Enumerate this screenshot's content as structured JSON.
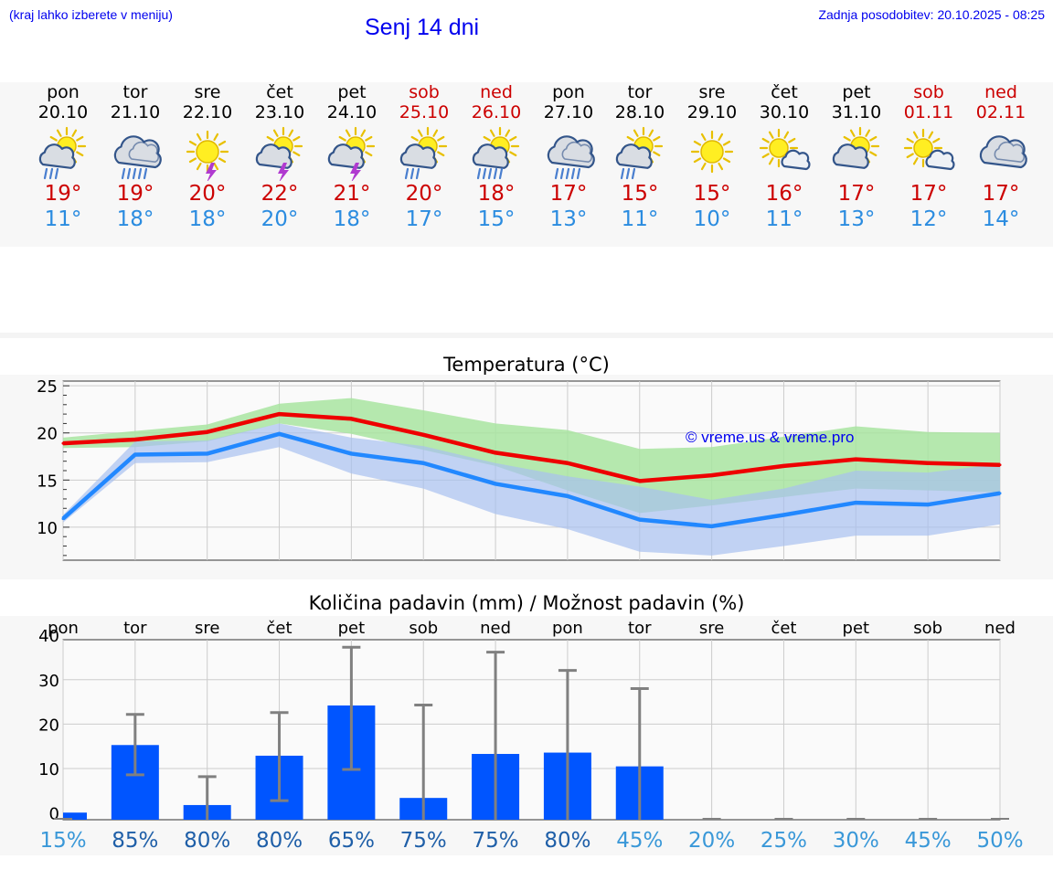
{
  "header": {
    "note": "(kraj lahko izberete v meniju)",
    "title": "Senj 14 dni",
    "updated": "Zadnja posodobitev: 20.10.2025 - 08:25"
  },
  "days": [
    {
      "name": "pon",
      "date": "20.10",
      "weekend": false,
      "icon": "sun-cloud-rain-icon",
      "max": "19°",
      "min": "11°"
    },
    {
      "name": "tor",
      "date": "21.10",
      "weekend": false,
      "icon": "cloud-heavy-rain-icon",
      "max": "19°",
      "min": "18°"
    },
    {
      "name": "sre",
      "date": "22.10",
      "weekend": false,
      "icon": "sun-thunderstorm-icon",
      "max": "20°",
      "min": "18°"
    },
    {
      "name": "čet",
      "date": "23.10",
      "weekend": false,
      "icon": "sun-cloud-thunderstorm-icon",
      "max": "22°",
      "min": "20°"
    },
    {
      "name": "pet",
      "date": "24.10",
      "weekend": false,
      "icon": "sun-cloud-thunderstorm-icon",
      "max": "21°",
      "min": "18°"
    },
    {
      "name": "sob",
      "date": "25.10",
      "weekend": true,
      "icon": "sun-cloud-rain-icon",
      "max": "20°",
      "min": "17°"
    },
    {
      "name": "ned",
      "date": "26.10",
      "weekend": true,
      "icon": "sun-cloud-heavy-rain-icon",
      "max": "18°",
      "min": "15°"
    },
    {
      "name": "pon",
      "date": "27.10",
      "weekend": false,
      "icon": "cloud-heavy-rain-icon",
      "max": "17°",
      "min": "13°"
    },
    {
      "name": "tor",
      "date": "28.10",
      "weekend": false,
      "icon": "sun-cloud-rain-icon",
      "max": "15°",
      "min": "11°"
    },
    {
      "name": "sre",
      "date": "29.10",
      "weekend": false,
      "icon": "sun-icon",
      "max": "15°",
      "min": "10°"
    },
    {
      "name": "čet",
      "date": "30.10",
      "weekend": false,
      "icon": "sun-small-cloud-icon",
      "max": "16°",
      "min": "11°"
    },
    {
      "name": "pet",
      "date": "31.10",
      "weekend": false,
      "icon": "sun-cloud-icon",
      "max": "17°",
      "min": "13°"
    },
    {
      "name": "sob",
      "date": "01.11",
      "weekend": true,
      "icon": "sun-small-cloud-icon",
      "max": "17°",
      "min": "12°"
    },
    {
      "name": "ned",
      "date": "02.11",
      "weekend": true,
      "icon": "cloud-icon",
      "max": "17°",
      "min": "14°"
    }
  ],
  "colors": {
    "max_line": "#ee0000",
    "min_line": "#2288ff",
    "max_band": "#a8e4a0",
    "min_band": "#a8c0f0",
    "bar": "#0055ff",
    "error_bar": "#808080",
    "watermark": "#0000ee"
  },
  "chart_data": [
    {
      "type": "line",
      "title": "Temperatura (°C)",
      "watermark": "© vreme.us & vreme.pro",
      "ylim": [
        6.5,
        25.5
      ],
      "yticks": [
        10,
        15,
        20,
        25
      ],
      "series": [
        {
          "name": "max",
          "values": [
            18.9,
            19.3,
            20.1,
            22.0,
            21.5,
            19.8,
            17.9,
            16.8,
            14.9,
            15.5,
            16.5,
            17.2,
            16.8,
            16.6
          ]
        },
        {
          "name": "min",
          "values": [
            10.9,
            17.7,
            17.8,
            19.9,
            17.8,
            16.8,
            14.6,
            13.3,
            10.8,
            10.1,
            11.3,
            12.6,
            12.4,
            13.6
          ]
        }
      ],
      "max_range": {
        "low": [
          18.4,
          18.5,
          19.1,
          21.0,
          19.9,
          18.2,
          16.5,
          13.9,
          11.5,
          12.3,
          13.2,
          14.1,
          13.9,
          13.7
        ],
        "high": [
          19.5,
          20.2,
          20.9,
          23.1,
          23.7,
          22.4,
          21.0,
          20.3,
          18.3,
          18.5,
          19.6,
          20.7,
          20.1,
          20.0
        ]
      },
      "min_range": {
        "low": [
          10.5,
          16.8,
          16.9,
          18.5,
          15.7,
          14.1,
          11.4,
          9.8,
          7.4,
          7.0,
          8.0,
          9.1,
          9.1,
          10.3
        ],
        "high": [
          11.3,
          19.1,
          19.2,
          21.0,
          19.5,
          18.6,
          16.8,
          15.4,
          14.3,
          12.9,
          14.1,
          16.0,
          15.8,
          16.7
        ]
      }
    },
    {
      "type": "bar",
      "title": "Količina padavin (mm) / Možnost padavin (%)",
      "categories": [
        "pon",
        "tor",
        "sre",
        "čet",
        "pet",
        "sob",
        "ned",
        "pon",
        "tor",
        "sre",
        "čet",
        "pet",
        "sob",
        "ned"
      ],
      "ylim": [
        -1.5,
        39
      ],
      "yticks": [
        0,
        10,
        20,
        30,
        40
      ],
      "values": [
        0.1,
        15.3,
        1.8,
        12.9,
        24.2,
        3.4,
        13.3,
        13.6,
        10.5,
        0,
        0,
        0,
        0,
        0
      ],
      "error_low": [
        0,
        8.6,
        0,
        2.8,
        9.8,
        0,
        0,
        0,
        0,
        0,
        0,
        0,
        0,
        0
      ],
      "error_high": [
        0.2,
        22.2,
        8.2,
        22.6,
        37.3,
        24.3,
        36.2,
        32.1,
        28.0,
        0,
        0,
        0,
        0,
        0
      ],
      "probabilities": [
        "15%",
        "85%",
        "80%",
        "80%",
        "65%",
        "75%",
        "75%",
        "80%",
        "45%",
        "20%",
        "25%",
        "30%",
        "45%",
        "50%"
      ]
    }
  ]
}
